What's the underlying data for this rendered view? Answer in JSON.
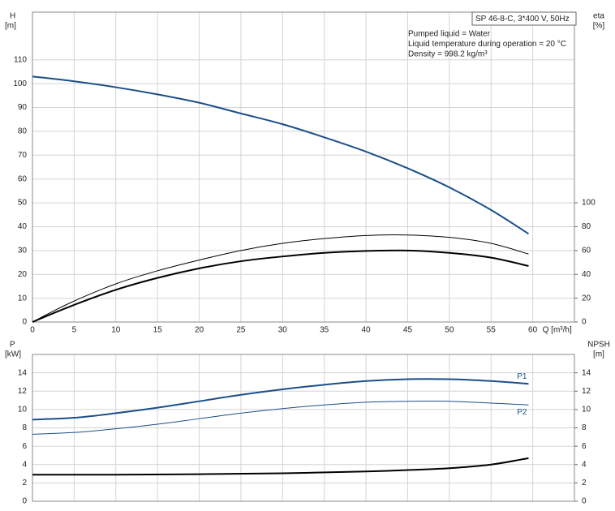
{
  "chart_data": [
    {
      "type": "line",
      "title": "SP 46-8-C, 3*400 V, 50Hz",
      "annotations": [
        "Pumped liquid = Water",
        "Liquid temperature during operation = 20 °C",
        "Density = 998.2 kg/m³"
      ],
      "xlabel": "Q [m³/h]",
      "ylabel": [
        "H",
        "[m]"
      ],
      "y2label": [
        "eta",
        "[%]"
      ],
      "xlim": [
        0,
        65
      ],
      "xticks": [
        0,
        5,
        10,
        15,
        20,
        25,
        30,
        35,
        40,
        45,
        50,
        55,
        60
      ],
      "xtick_labels": true,
      "ylim": [
        0,
        130
      ],
      "yticks": [
        0,
        10,
        20,
        30,
        40,
        50,
        60,
        70,
        80,
        90,
        100,
        110
      ],
      "y2lim": [
        0,
        260
      ],
      "y2ticks": [
        0,
        20,
        40,
        60,
        80,
        100
      ],
      "grid": true,
      "series": [
        {
          "color": "#1b4f8a",
          "width": 2,
          "x": [
            0,
            5,
            10,
            15,
            20,
            25,
            30,
            35,
            40,
            45,
            50,
            55,
            59.5
          ],
          "values": [
            103,
            101,
            98.5,
            95.5,
            92,
            87.5,
            83,
            77.5,
            71.5,
            64.5,
            56.5,
            47,
            37
          ]
        },
        {
          "color": "#000000",
          "width": 1,
          "axis": "y2",
          "x": [
            0,
            4.5,
            10,
            15,
            20,
            25,
            30,
            35,
            40,
            45,
            50,
            55,
            59.5
          ],
          "values": [
            0,
            16,
            32,
            43,
            52,
            60,
            66,
            70,
            72.6,
            73,
            71,
            66,
            57
          ]
        },
        {
          "color": "#000000",
          "width": 2,
          "axis": "y2",
          "x": [
            0,
            4.5,
            10,
            15,
            20,
            25,
            30,
            35,
            40,
            45,
            50,
            55,
            59.5
          ],
          "values": [
            0,
            13,
            27,
            37,
            45,
            51,
            55,
            58,
            59.6,
            60,
            58,
            54,
            47
          ]
        }
      ]
    },
    {
      "type": "line",
      "ylabel": [
        "P",
        "[kW]"
      ],
      "y2label": [
        "NPSH",
        "[m]"
      ],
      "xlim": [
        0,
        65
      ],
      "xticks": [
        0,
        5,
        10,
        15,
        20,
        25,
        30,
        35,
        40,
        45,
        50,
        55,
        60
      ],
      "xtick_labels": false,
      "ylim": [
        0,
        16
      ],
      "yticks": [
        0,
        2,
        4,
        6,
        8,
        10,
        12,
        14
      ],
      "y2lim": [
        0,
        16
      ],
      "y2ticks": [
        0,
        2,
        4,
        6,
        8,
        10,
        12,
        14
      ],
      "grid": true,
      "series": [
        {
          "name": "P1",
          "color": "#1b4f8a",
          "width": 2,
          "label_side": "above",
          "x": [
            0,
            5,
            10,
            15,
            20,
            25,
            30,
            35,
            40,
            45,
            50,
            55,
            59.5
          ],
          "values": [
            8.9,
            9.1,
            9.6,
            10.2,
            10.9,
            11.6,
            12.2,
            12.7,
            13.1,
            13.3,
            13.3,
            13.1,
            12.8
          ]
        },
        {
          "name": "P2",
          "color": "#1b4f8a",
          "width": 1,
          "label_side": "below",
          "x": [
            0,
            5,
            10,
            15,
            20,
            25,
            30,
            35,
            40,
            45,
            50,
            55,
            59.5
          ],
          "values": [
            7.3,
            7.5,
            7.9,
            8.4,
            9.0,
            9.6,
            10.1,
            10.5,
            10.8,
            10.9,
            10.9,
            10.7,
            10.5
          ]
        },
        {
          "color": "#000000",
          "width": 2,
          "axis": "y2",
          "x": [
            0,
            5,
            10,
            20,
            30,
            40,
            45,
            50,
            55,
            59.5
          ],
          "values": [
            2.9,
            2.9,
            2.9,
            2.95,
            3.05,
            3.25,
            3.4,
            3.6,
            4.0,
            4.7
          ]
        }
      ]
    }
  ]
}
